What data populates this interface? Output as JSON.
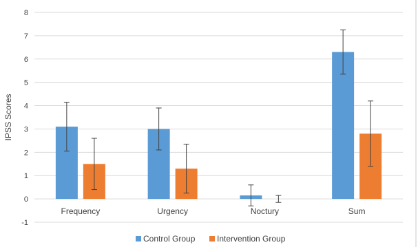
{
  "chart_data": {
    "type": "bar",
    "title": "",
    "xlabel": "",
    "ylabel": "IPSS Scores",
    "ylim": [
      -1,
      8
    ],
    "yticks": [
      -1,
      0,
      1,
      2,
      3,
      4,
      5,
      6,
      7,
      8
    ],
    "grid": true,
    "legend_position": "bottom",
    "categories": [
      "Frequency",
      "Urgency",
      "Noctury",
      "Sum"
    ],
    "series": [
      {
        "name": "Control Group",
        "color": "#5b9bd5",
        "values": [
          3.1,
          3.0,
          0.15,
          6.3
        ],
        "error": [
          1.05,
          0.9,
          0.45,
          0.95
        ]
      },
      {
        "name": "Intervention Group",
        "color": "#ed7d31",
        "values": [
          1.5,
          1.3,
          0.0,
          2.8
        ],
        "error": [
          1.1,
          1.05,
          0.15,
          1.4
        ]
      }
    ]
  }
}
